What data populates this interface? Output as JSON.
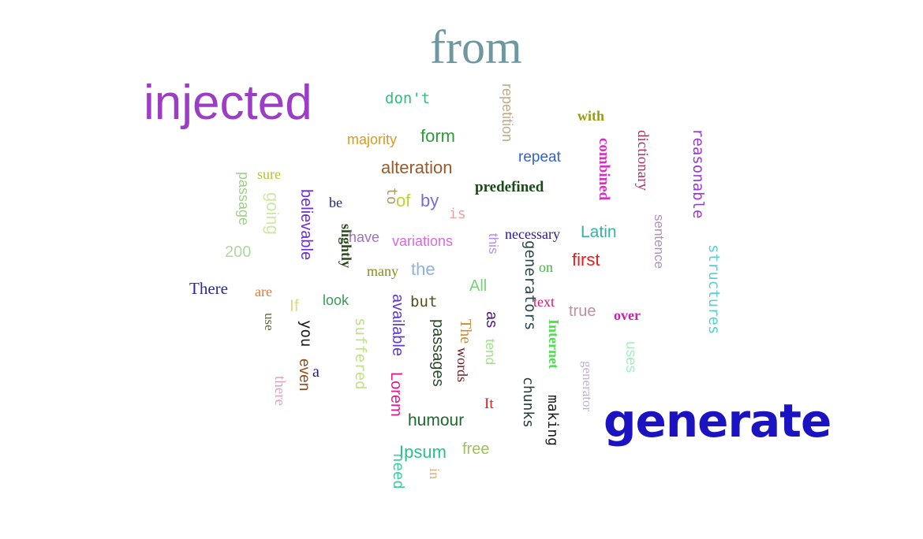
{
  "word_cloud": {
    "words": [
      {
        "text": "from",
        "color": "#6f97a0"
      },
      {
        "text": "injected",
        "color": "#9b3ec4"
      },
      {
        "text": "generate",
        "color": "#1b12c2"
      },
      {
        "text": "don't",
        "color": "#2fbf7a"
      },
      {
        "text": "repetition",
        "color": "#c2a98a"
      },
      {
        "text": "with",
        "color": "#9a9a12"
      },
      {
        "text": "reasonable",
        "color": "#9c3ad6"
      },
      {
        "text": "majority",
        "color": "#d99a1e"
      },
      {
        "text": "form",
        "color": "#2f9a3a"
      },
      {
        "text": "combined",
        "color": "#d62fbf"
      },
      {
        "text": "dictionary",
        "color": "#b0306a"
      },
      {
        "text": "repeat",
        "color": "#2f62d9"
      },
      {
        "text": "alteration",
        "color": "#9a5a2a"
      },
      {
        "text": "sure",
        "color": "#b8c22a"
      },
      {
        "text": "passage",
        "color": "#9fd08a"
      },
      {
        "text": "going",
        "color": "#cfe8a8"
      },
      {
        "text": "believable",
        "color": "#6a2fd6"
      },
      {
        "text": "be",
        "color": "#1a2a6a"
      },
      {
        "text": "to",
        "color": "#a89a62"
      },
      {
        "text": "of",
        "color": "#b8d62f"
      },
      {
        "text": "by",
        "color": "#7a6ad6"
      },
      {
        "text": "is",
        "color": "#f0a0a0"
      },
      {
        "text": "predefined",
        "color": "#1a4a1a"
      },
      {
        "text": "sentence",
        "color": "#b090b8"
      },
      {
        "text": "200",
        "color": "#b0d8a0"
      },
      {
        "text": "slightly",
        "color": "#2a4a1a"
      },
      {
        "text": "have",
        "color": "#a070c8"
      },
      {
        "text": "variations",
        "color": "#d86ae0"
      },
      {
        "text": "this",
        "color": "#b090e8"
      },
      {
        "text": "necessary",
        "color": "#2a1a8a"
      },
      {
        "text": "Latin",
        "color": "#3ab0a0"
      },
      {
        "text": "structures",
        "color": "#5ad0d0"
      },
      {
        "text": "generators",
        "color": "#2a4a4a"
      },
      {
        "text": "first",
        "color": "#f01a1a"
      },
      {
        "text": "on",
        "color": "#4ab04a"
      },
      {
        "text": "many",
        "color": "#8a8a1a"
      },
      {
        "text": "the",
        "color": "#90b0e0"
      },
      {
        "text": "There",
        "color": "#2a2a9a"
      },
      {
        "text": "are",
        "color": "#e07a3a"
      },
      {
        "text": "All",
        "color": "#7ad07a"
      },
      {
        "text": "If",
        "color": "#d8e08a"
      },
      {
        "text": "look",
        "color": "#3a9a5a"
      },
      {
        "text": "but",
        "color": "#5a4a1a"
      },
      {
        "text": "text",
        "color": "#d01a6a"
      },
      {
        "text": "true",
        "color": "#c090a0"
      },
      {
        "text": "over",
        "color": "#d01ab0"
      },
      {
        "text": "use",
        "color": "#5a6a3a"
      },
      {
        "text": "you",
        "color": "#1a1a1a"
      },
      {
        "text": "suffered",
        "color": "#c0e08a"
      },
      {
        "text": "available",
        "color": "#5a3ad0"
      },
      {
        "text": "passages",
        "color": "#2a4a2a"
      },
      {
        "text": "The",
        "color": "#d08a3a"
      },
      {
        "text": "words",
        "color": "#6a1a1a"
      },
      {
        "text": "as",
        "color": "#4a1a8a"
      },
      {
        "text": "tend",
        "color": "#a0e08a"
      },
      {
        "text": "Internet",
        "color": "#4ae04a"
      },
      {
        "text": "uses",
        "color": "#a0f0c0"
      },
      {
        "text": "even",
        "color": "#9a4a1a"
      },
      {
        "text": "generator",
        "color": "#c0b0d0"
      },
      {
        "text": "a",
        "color": "#2a1a6a"
      },
      {
        "text": "there",
        "color": "#e0a0c0"
      },
      {
        "text": "Lorem",
        "color": "#e01a8a"
      },
      {
        "text": "chunks",
        "color": "#2a3a3a"
      },
      {
        "text": "It",
        "color": "#e01a1a"
      },
      {
        "text": "making",
        "color": "#1a1a1a"
      },
      {
        "text": "humour",
        "color": "#1a6a2a"
      },
      {
        "text": "Ipsum",
        "color": "#2ac08a"
      },
      {
        "text": "free",
        "color": "#a0c05a"
      },
      {
        "text": "need",
        "color": "#3ad0a0"
      },
      {
        "text": "in",
        "color": "#e0b07a"
      }
    ]
  }
}
